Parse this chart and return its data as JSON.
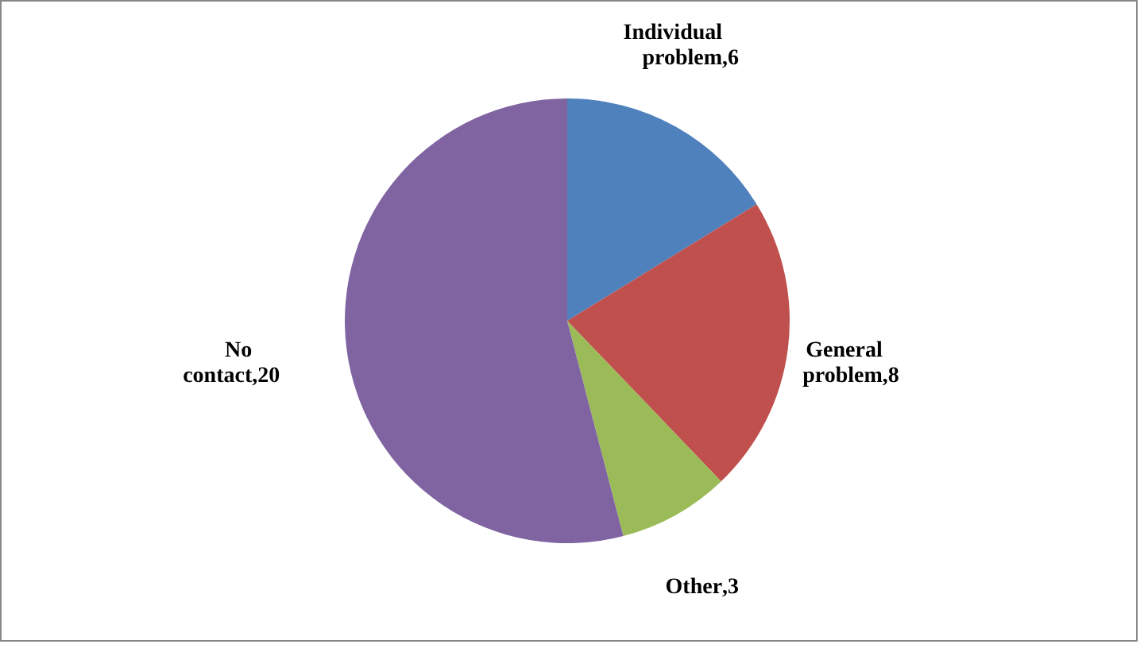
{
  "chart_data": {
    "type": "pie",
    "categories": [
      "Individual problem",
      "General problem",
      "Other",
      "No contact"
    ],
    "values": [
      6,
      8,
      3,
      20
    ],
    "colors": [
      "#4f81bd",
      "#c0504d",
      "#9bbb59",
      "#8064a2"
    ],
    "value_labels": [
      ",6",
      ",8",
      ",3",
      ",20"
    ]
  }
}
